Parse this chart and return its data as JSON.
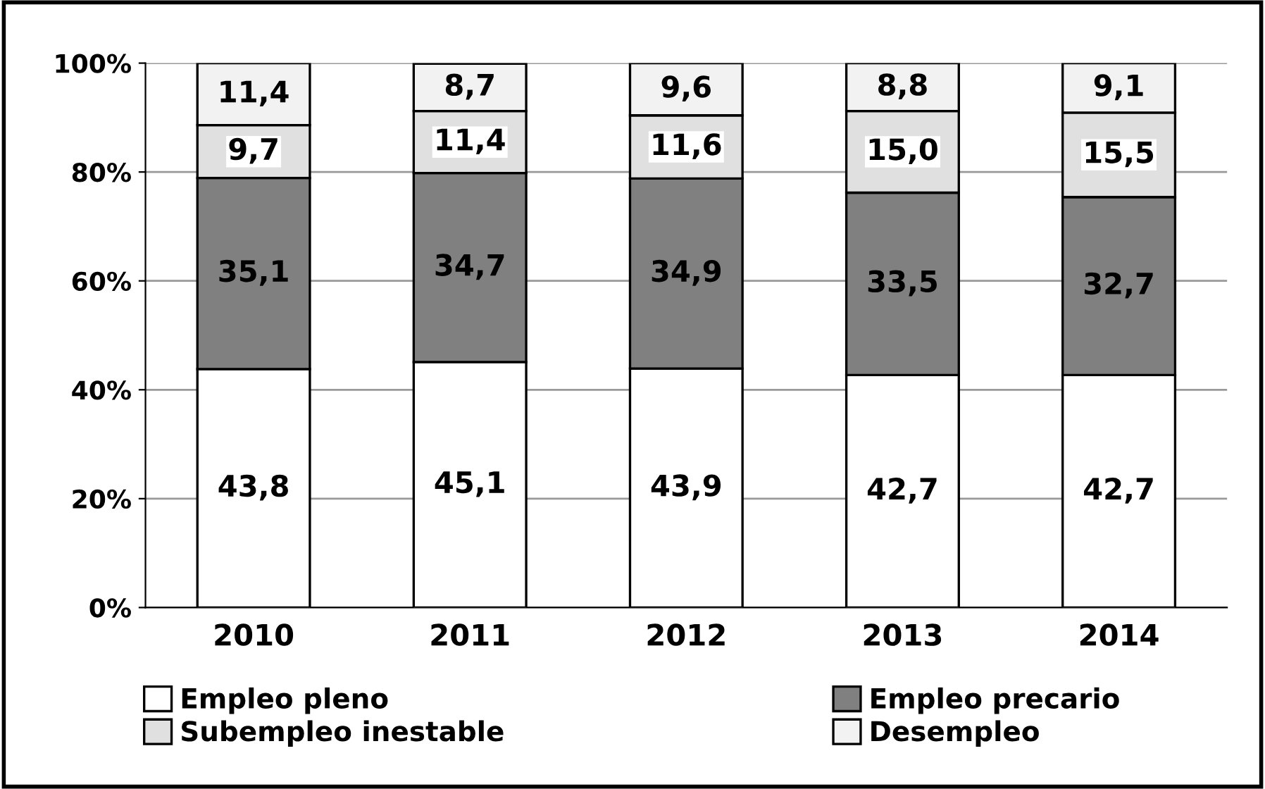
{
  "chart_data": {
    "type": "bar",
    "stacked": true,
    "categories": [
      "2010",
      "2011",
      "2012",
      "2013",
      "2014"
    ],
    "series": [
      {
        "name": "Empleo pleno",
        "color": "#ffffff",
        "values": [
          43.8,
          45.1,
          43.9,
          42.7,
          42.7
        ],
        "value_labels": [
          "43,8",
          "45,1",
          "43,9",
          "42,7",
          "42,7"
        ]
      },
      {
        "name": "Empleo precario",
        "color": "#808080",
        "values": [
          35.1,
          34.7,
          34.9,
          33.5,
          32.7
        ],
        "value_labels": [
          "35,1",
          "34,7",
          "34,9",
          "33,5",
          "32,7"
        ]
      },
      {
        "name": "Subempleo inestable",
        "color": "#e0e0e0",
        "values": [
          9.7,
          11.4,
          11.6,
          15.0,
          15.5
        ],
        "value_labels": [
          "9,7",
          "11,4",
          "11,6",
          "15,0",
          "15,5"
        ]
      },
      {
        "name": "Desempleo",
        "color": "#f2f2f2",
        "values": [
          11.4,
          8.7,
          9.6,
          8.8,
          9.1
        ],
        "value_labels": [
          "11,4",
          "8,7",
          "9,6",
          "8,8",
          "9,1"
        ]
      }
    ],
    "ylim": [
      0,
      100
    ],
    "yticks": [
      {
        "value": 0,
        "label": "0%"
      },
      {
        "value": 20,
        "label": "20%"
      },
      {
        "value": 40,
        "label": "40%"
      },
      {
        "value": 60,
        "label": "60%"
      },
      {
        "value": 80,
        "label": "80%"
      },
      {
        "value": 100,
        "label": "100%"
      }
    ],
    "grid": "y",
    "legend": "bottom"
  }
}
